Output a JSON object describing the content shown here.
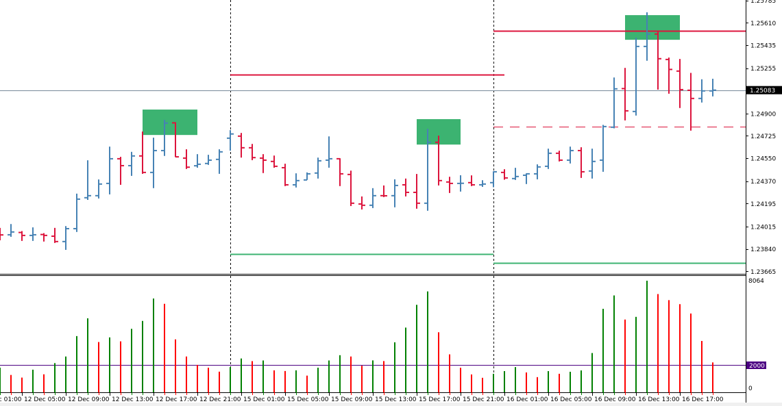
{
  "chart_data": {
    "type": "ohlc",
    "timeframe_step_hours": 1,
    "colors": {
      "bull_bar": "#4682B4",
      "bear_bar": "#DC143C",
      "volume_up": "#008000",
      "volume_down": "#FF0000",
      "zone": "#3CB371",
      "resistance": "#DC143C",
      "support": "#3CB371",
      "current_price_line": "#778899",
      "volume_level_line": "#4B0082"
    },
    "price_axis": {
      "ylim": [
        1.23665,
        1.25785
      ],
      "tick_labels": [
        "1.25785",
        "1.25610",
        "1.25435",
        "1.25255",
        "1.24900",
        "1.24725",
        "1.24550",
        "1.24370",
        "1.24195",
        "1.24015",
        "1.23840",
        "1.23665"
      ],
      "current_price": "1.25083"
    },
    "time_axis": {
      "tick_labels": [
        {
          "bar": -2,
          "label": "12 Dec 01:00"
        },
        {
          "bar": 2,
          "label": "12 Dec 05:00"
        },
        {
          "bar": 6,
          "label": "12 Dec 09:00"
        },
        {
          "bar": 10,
          "label": "12 Dec 13:00"
        },
        {
          "bar": 14,
          "label": "12 Dec 17:00"
        },
        {
          "bar": 18,
          "label": "12 Dec 21:00"
        },
        {
          "bar": 22,
          "label": "15 Dec 01:00"
        },
        {
          "bar": 26,
          "label": "15 Dec 05:00"
        },
        {
          "bar": 30,
          "label": "15 Dec 09:00"
        },
        {
          "bar": 34,
          "label": "15 Dec 13:00"
        },
        {
          "bar": 38,
          "label": "15 Dec 17:00"
        },
        {
          "bar": 42,
          "label": "15 Dec 21:00"
        },
        {
          "bar": 46,
          "label": "16 Dec 01:00"
        },
        {
          "bar": 50,
          "label": "16 Dec 05:00"
        },
        {
          "bar": 54,
          "label": "16 Dec 09:00"
        },
        {
          "bar": 58,
          "label": "16 Dec 13:00"
        },
        {
          "bar": 62,
          "label": "16 Dec 17:00"
        }
      ],
      "day_separators": [
        21,
        45
      ]
    },
    "ohlc": [
      [
        1.2396,
        1.24005,
        1.23908,
        1.2395
      ],
      [
        1.23951,
        1.24035,
        1.23935,
        1.23973
      ],
      [
        1.23969,
        1.2398,
        1.23903,
        1.23946
      ],
      [
        1.23946,
        1.24009,
        1.23903,
        1.23951
      ],
      [
        1.23953,
        1.23964,
        1.23898,
        1.23946
      ],
      [
        1.2394,
        1.24005,
        1.23887,
        1.23898
      ],
      [
        1.23898,
        1.24019,
        1.23833,
        1.23999
      ],
      [
        1.23999,
        1.24273,
        1.23973,
        1.2423
      ],
      [
        1.24241,
        1.24534,
        1.24224,
        1.24257
      ],
      [
        1.24257,
        1.24384,
        1.24235,
        1.24348
      ],
      [
        1.24353,
        1.24641,
        1.24267,
        1.24546
      ],
      [
        1.24546,
        1.24561,
        1.24342,
        1.24492
      ],
      [
        1.24492,
        1.246,
        1.24412,
        1.24568
      ],
      [
        1.24568,
        1.24759,
        1.24428,
        1.24439
      ],
      [
        1.24439,
        1.24711,
        1.24316,
        1.2461
      ],
      [
        1.2461,
        1.2485,
        1.24568,
        1.24825
      ],
      [
        1.24827,
        1.24832,
        1.24559,
        1.24561
      ],
      [
        1.24551,
        1.2462,
        1.24466,
        1.2448
      ],
      [
        1.24491,
        1.24582,
        1.24476,
        1.24503
      ],
      [
        1.24509,
        1.24577,
        1.24498,
        1.24535
      ],
      [
        1.24541,
        1.2462,
        1.24428,
        1.246
      ],
      [
        1.24707,
        1.2477,
        1.24609,
        1.2474
      ],
      [
        1.24723,
        1.24748,
        1.24555,
        1.24632
      ],
      [
        1.24632,
        1.24662,
        1.24535,
        1.24555
      ],
      [
        1.24551,
        1.24582,
        1.24434,
        1.24535
      ],
      [
        1.24525,
        1.24571,
        1.24476,
        1.24487
      ],
      [
        1.24476,
        1.24507,
        1.24332,
        1.24342
      ],
      [
        1.24342,
        1.24432,
        1.24321,
        1.24375
      ],
      [
        1.2438,
        1.24439,
        1.2438,
        1.24428
      ],
      [
        1.24434,
        1.24555,
        1.24391,
        1.2453
      ],
      [
        1.24535,
        1.24721,
        1.24476,
        1.24546
      ],
      [
        1.24546,
        1.2455,
        1.24332,
        1.24428
      ],
      [
        1.24423,
        1.24453,
        1.24176,
        1.24198
      ],
      [
        1.24192,
        1.24251,
        1.24149,
        1.24182
      ],
      [
        1.24182,
        1.24316,
        1.2416,
        1.24257
      ],
      [
        1.24257,
        1.24337,
        1.24246,
        1.24256
      ],
      [
        1.24257,
        1.24385,
        1.24166,
        1.24337
      ],
      [
        1.24342,
        1.24391,
        1.24251,
        1.24283
      ],
      [
        1.24283,
        1.24427,
        1.24155,
        1.24198
      ],
      [
        1.24198,
        1.2478,
        1.24139,
        1.24675
      ],
      [
        1.24675,
        1.24727,
        1.24337,
        1.24375
      ],
      [
        1.24364,
        1.24405,
        1.24278,
        1.24353
      ],
      [
        1.24353,
        1.24417,
        1.24289,
        1.24354
      ],
      [
        1.24359,
        1.24416,
        1.24332,
        1.24342
      ],
      [
        1.24342,
        1.24378,
        1.24326,
        1.24348
      ],
      [
        1.24359,
        1.24448,
        1.24323,
        1.24444
      ],
      [
        1.24439,
        1.24464,
        1.24382,
        1.24396
      ],
      [
        1.24391,
        1.24475,
        1.2438,
        1.24407
      ],
      [
        1.24417,
        1.24432,
        1.24348,
        1.24428
      ],
      [
        1.24428,
        1.24502,
        1.24385,
        1.24482
      ],
      [
        1.24487,
        1.24625,
        1.24466,
        1.24589
      ],
      [
        1.24589,
        1.24609,
        1.24525,
        1.24535
      ],
      [
        1.24535,
        1.24641,
        1.24509,
        1.2461
      ],
      [
        1.2461,
        1.24636,
        1.24396,
        1.24444
      ],
      [
        1.2445,
        1.24625,
        1.24391,
        1.24525
      ],
      [
        1.24535,
        1.24811,
        1.24444,
        1.24798
      ],
      [
        1.24793,
        1.25182,
        1.24784,
        1.25093
      ],
      [
        1.25095,
        1.25257,
        1.24846,
        1.24921
      ],
      [
        1.24916,
        1.25493,
        1.24884,
        1.25425
      ],
      [
        1.25425,
        1.25692,
        1.25313,
        1.25522
      ],
      [
        1.25522,
        1.25548,
        1.25087,
        1.25329
      ],
      [
        1.25323,
        1.25338,
        1.25055,
        1.25245
      ],
      [
        1.25232,
        1.25327,
        1.24943,
        1.25087
      ],
      [
        1.25082,
        1.25218,
        1.24766,
        1.25018
      ],
      [
        1.25018,
        1.25168,
        1.24986,
        1.25077
      ],
      [
        1.25077,
        1.25172,
        1.25034,
        1.25083
      ]
    ],
    "volume_axis": {
      "ylim": [
        0,
        8064
      ],
      "tick_labels": [
        "8064",
        "0"
      ],
      "level_label": "2000",
      "level": 2000
    },
    "volume": [
      1778,
      1254,
      1063,
      1635,
      1301,
      2111,
      2587,
      4063,
      5348,
      3634,
      3968,
      3682,
      4586,
      5158,
      6776,
      6396,
      3825,
      2587,
      1984,
      1778,
      1492,
      1825,
      2444,
      2254,
      2301,
      1587,
      1539,
      1587,
      1206,
      1778,
      2301,
      2682,
      2587,
      1920,
      2306,
      2258,
      3613,
      4677,
      6323,
      7290,
      4339,
      2742,
      1774,
      1290,
      1048,
      1339,
      1532,
      1823,
      1435,
      1097,
      1532,
      1339,
      1484,
      1581,
      2839,
      6032,
      7000,
      5258,
      5452,
      8064,
      7097,
      6661,
      6371,
      5694,
      3710,
      2161
    ],
    "horizontal_levels": [
      {
        "kind": "resistance",
        "price": 1.25204,
        "from_bar": 21,
        "to_bar": 46,
        "style": "solid"
      },
      {
        "kind": "support",
        "price": 1.23799,
        "from_bar": 21,
        "to_bar": 45,
        "style": "solid"
      },
      {
        "kind": "resistance",
        "price": 1.25548,
        "from_bar": 45,
        "to_bar": null,
        "style": "solid"
      },
      {
        "kind": "support",
        "price": 1.2373,
        "from_bar": 45,
        "to_bar": null,
        "style": "solid"
      },
      {
        "kind": "resistance",
        "price": 1.24795,
        "from_bar": 45,
        "to_bar": null,
        "style": "dashed"
      }
    ],
    "zones": [
      {
        "from_bar": 13,
        "to_bar": 18,
        "price_top": 1.24931,
        "price_bottom": 1.24732
      },
      {
        "from_bar": 38,
        "to_bar": 42,
        "price_top": 1.24856,
        "price_bottom": 1.24657
      },
      {
        "from_bar": 57,
        "to_bar": 62,
        "price_top": 1.2567,
        "price_bottom": 1.25477
      }
    ]
  }
}
